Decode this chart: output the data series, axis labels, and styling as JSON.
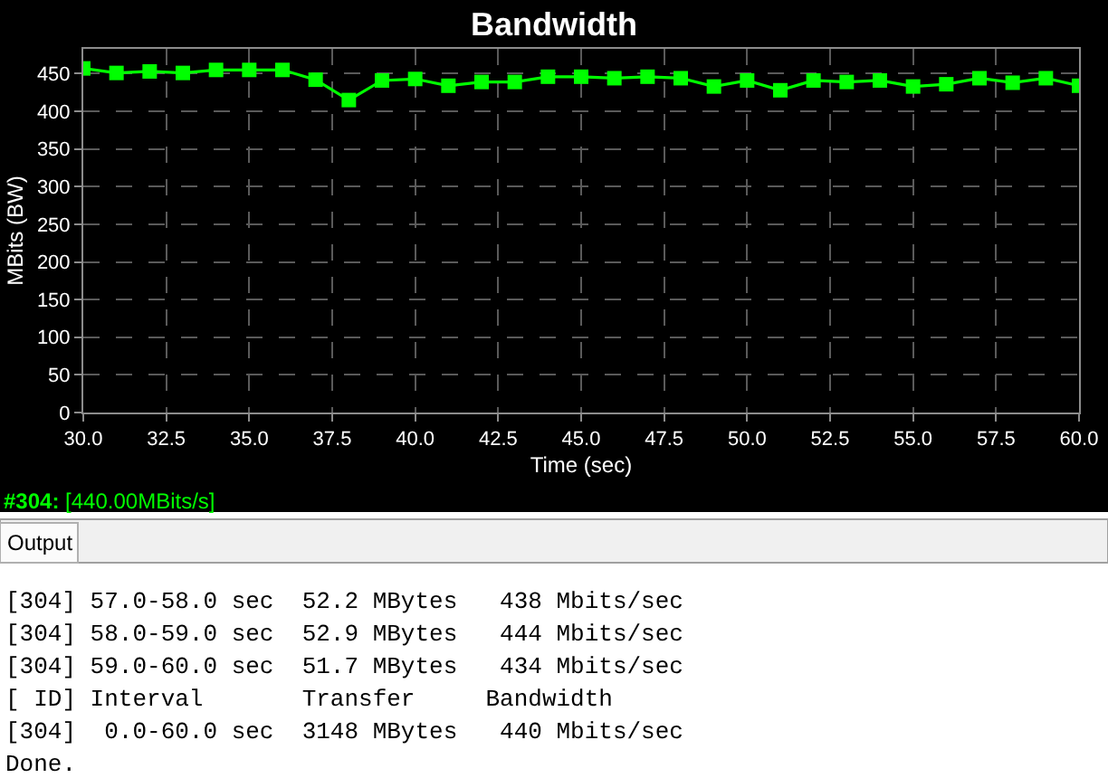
{
  "chart_data": {
    "type": "line",
    "title": "Bandwidth",
    "xlabel": "Time (sec)",
    "ylabel": "MBits (BW)",
    "x": [
      30,
      31,
      32,
      33,
      34,
      35,
      36,
      37,
      38,
      39,
      40,
      41,
      42,
      43,
      44,
      45,
      46,
      47,
      48,
      49,
      50,
      51,
      52,
      53,
      54,
      55,
      56,
      57,
      58,
      59,
      60
    ],
    "series": [
      {
        "color": "#00ff00",
        "values": [
          457,
          451,
          453,
          451,
          455,
          455,
          455,
          442,
          415,
          441,
          443,
          434,
          439,
          439,
          446,
          446,
          444,
          446,
          444,
          433,
          441,
          428,
          441,
          439,
          441,
          433,
          436,
          444,
          438,
          444,
          434
        ]
      }
    ],
    "xlim": [
      30,
      60
    ],
    "ylim": [
      0,
      483
    ],
    "xticks": [
      {
        "value": 30,
        "label": "30.0"
      },
      {
        "value": 32.5,
        "label": "32.5"
      },
      {
        "value": 35,
        "label": "35.0"
      },
      {
        "value": 37.5,
        "label": "37.5"
      },
      {
        "value": 40,
        "label": "40.0"
      },
      {
        "value": 42.5,
        "label": "42.5"
      },
      {
        "value": 45,
        "label": "45.0"
      },
      {
        "value": 47.5,
        "label": "47.5"
      },
      {
        "value": 50,
        "label": "50.0"
      },
      {
        "value": 52.5,
        "label": "52.5"
      },
      {
        "value": 55,
        "label": "55.0"
      },
      {
        "value": 57.5,
        "label": "57.5"
      },
      {
        "value": 60,
        "label": "60.0"
      }
    ],
    "yticks": [
      0,
      50,
      100,
      150,
      200,
      250,
      300,
      350,
      400,
      450
    ],
    "grid": true,
    "marker": "square",
    "line_style": "solid",
    "annotations": [
      "#304: [440.00MBits/s]",
      "Output",
      "[304] 57.0-58.0 sec  52.2 MBytes   438 Mbits/sec",
      "[304] 58.0-59.0 sec  52.9 MBytes   444 Mbits/sec",
      "[304] 59.0-60.0 sec  51.7 MBytes   434 Mbits/sec",
      "[ ID] Interval       Transfer     Bandwidth",
      "[304]  0.0-60.0 sec  3148 MBytes   440 Mbits/sec",
      "Done."
    ]
  }
}
